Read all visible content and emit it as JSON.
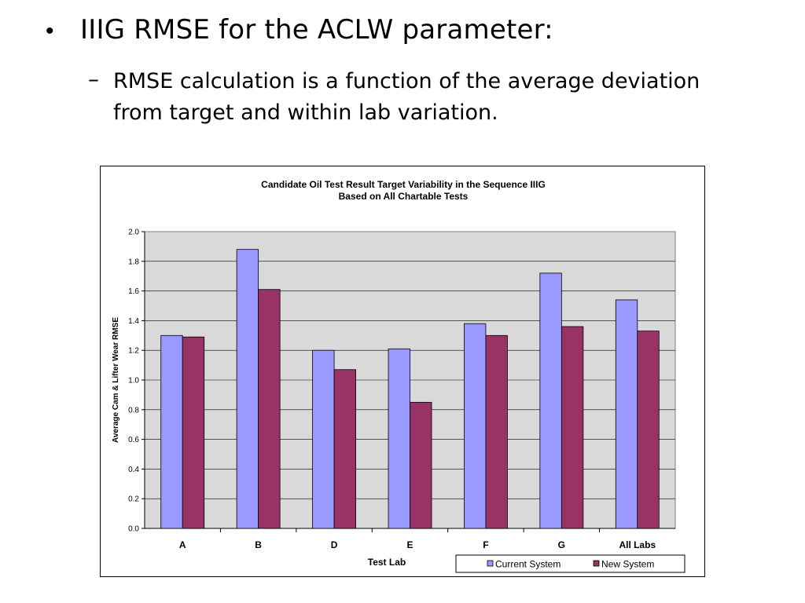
{
  "slide": {
    "bullet": "IIIG RMSE for the ACLW parameter:",
    "bullet_symbol": "•",
    "sub_symbol": "–",
    "sub_bullet": "RMSE calculation is a function of the average deviation from target and within lab variation."
  },
  "chart_data": {
    "type": "bar",
    "title": "Candidate Oil Test Result Target Variability in the Sequence IIIG",
    "subtitle": "Based on All Chartable Tests",
    "xlabel": "Test Lab",
    "ylabel": "Average Cam & Lifter Wear RMSE",
    "ylim": [
      0,
      2.0
    ],
    "yticks": [
      "0.0",
      "0.2",
      "0.4",
      "0.6",
      "0.8",
      "1.0",
      "1.2",
      "1.4",
      "1.6",
      "1.8",
      "2.0"
    ],
    "categories": [
      "A",
      "B",
      "D",
      "E",
      "F",
      "G",
      "All Labs"
    ],
    "series": [
      {
        "name": "Current System",
        "color": "#9999ff",
        "values": [
          1.3,
          1.88,
          1.2,
          1.21,
          1.38,
          1.72,
          1.54
        ]
      },
      {
        "name": "New System",
        "color": "#993366",
        "values": [
          1.29,
          1.61,
          1.07,
          0.85,
          1.3,
          1.36,
          1.33
        ]
      }
    ],
    "plot_background": "#d9d9d9",
    "grid": true,
    "legend_position": "bottom-right"
  }
}
